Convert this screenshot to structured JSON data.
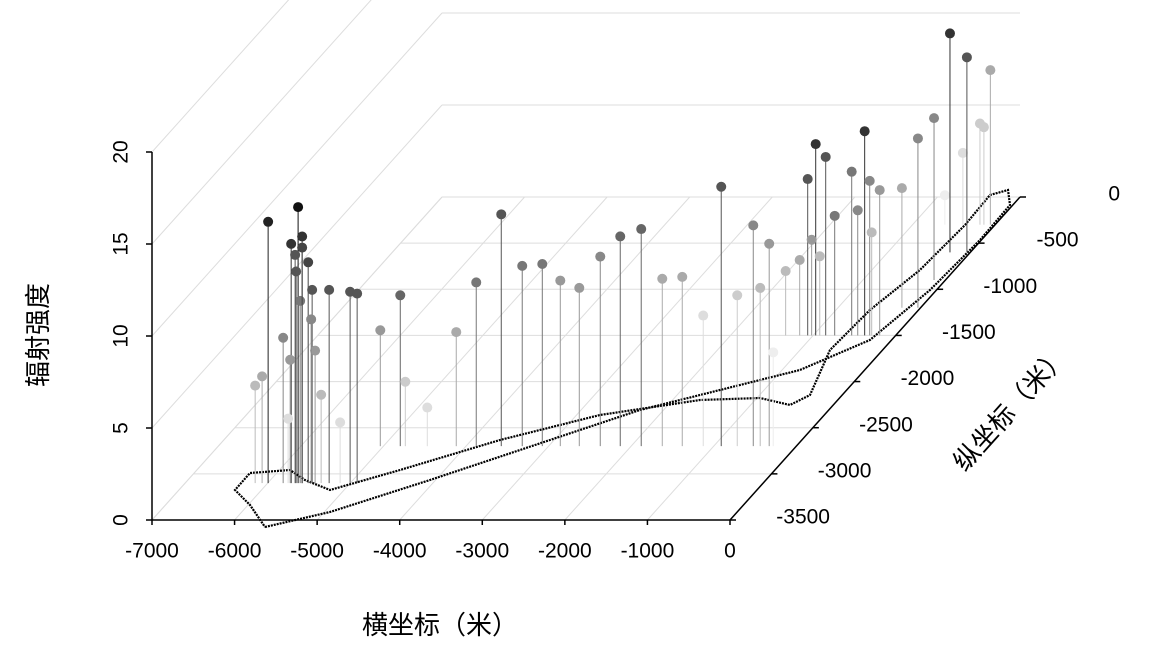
{
  "chart_data": {
    "type": "stem3d",
    "x_label": "横坐标（米）",
    "y_label": "纵坐标（米）",
    "z_label": "辐射强度",
    "xlim": [
      -7000,
      0
    ],
    "ylim": [
      -3500,
      0
    ],
    "zlim": [
      0,
      20
    ],
    "xticks": [
      -7000,
      -6000,
      -5000,
      -4000,
      -3000,
      -2000,
      -1000,
      0
    ],
    "yticks": [
      -3500,
      -3000,
      -2500,
      -2000,
      -1500,
      -1000,
      -500,
      0
    ],
    "zticks": [
      0,
      5,
      10,
      15,
      20
    ],
    "grid": true,
    "track": {
      "color": "#000000",
      "x": [
        -5555,
        -4932,
        -4068,
        -3305,
        -2287,
        -1535,
        -784,
        -262,
        -79,
        -17,
        -34,
        -222,
        -385,
        -362,
        -418,
        -589,
        -637,
        -391,
        -524,
        -963,
        -1668,
        -2717,
        -3655,
        -4540,
        -5170,
        -5582,
        -5873,
        -6324,
        -6321,
        -5977,
        -5555
      ],
      "y": [
        -3576,
        -3413,
        -3067,
        -2741,
        -2308,
        -2091,
        -1875,
        -1550,
        -1008,
        -466,
        -87,
        76,
        22,
        -303,
        -791,
        -1224,
        -1658,
        -2145,
        -2254,
        -2178,
        -2200,
        -2362,
        -2633,
        -2958,
        -3175,
        -3067,
        -2958,
        -2991,
        -3175,
        -3337,
        -3576
      ]
    },
    "points": {
      "x": [
        -5995,
        -5632,
        -5583,
        -5716,
        -5510,
        -5656,
        -5462,
        -5607,
        -5813,
        -5426,
        -6152,
        -6068,
        -5256,
        -5002,
        -4917,
        -5583,
        -5668,
        -5474,
        -5728,
        -5753,
        -5123,
        -5353,
        -4796,
        -5038,
        -4735,
        -4469,
        -4118,
        -3876,
        -3573,
        -3319,
        -3076,
        -2858,
        -2628,
        -2374,
        -2132,
        -1878,
        -1623,
        -1381,
        -1127,
        -909,
        -715,
        -521,
        -437,
        -328,
        -279,
        -1066,
        -969,
        -848,
        -739,
        -533,
        -376,
        -315,
        -194,
        -1163,
        -1018,
        -920,
        -460,
        -291,
        -1333,
        -226,
        -32,
        -138,
        -246,
        -41,
        -58,
        -184,
        -136,
        -391,
        -609
      ],
      "y": [
        -3100,
        -3100,
        -3100,
        -3100,
        -3100,
        -3100,
        -3100,
        -3100,
        -3100,
        -3100,
        -3100,
        -3100,
        -3100,
        -3100,
        -3100,
        -3100,
        -3100,
        -3100,
        -3100,
        -3100,
        -3100,
        -3100,
        -2700,
        -2700,
        -2700,
        -2700,
        -2700,
        -2700,
        -2700,
        -2700,
        -2700,
        -2700,
        -2700,
        -2700,
        -2700,
        -2700,
        -2700,
        -2700,
        -2700,
        -2700,
        -2700,
        -2700,
        -2700,
        -2700,
        -2700,
        -1500,
        -1500,
        -1500,
        -1500,
        -1500,
        -1500,
        -1500,
        -1500,
        -1500,
        -1500,
        -1500,
        -1500,
        -1500,
        -1500,
        -1200,
        -1200,
        -900,
        -600,
        -600,
        -300,
        -300,
        -300,
        -300,
        -300
      ],
      "z": [
        14.2,
        15.0,
        13.4,
        13.0,
        12.0,
        11.5,
        10.5,
        9.9,
        7.9,
        7.2,
        5.3,
        5.8,
        10.5,
        10.4,
        10.3,
        12.8,
        12.4,
        8.9,
        6.7,
        3.5,
        3.3,
        4.8,
        8.2,
        6.3,
        3.5,
        2.1,
        6.2,
        8.9,
        12.6,
        9.8,
        9.9,
        9.0,
        8.6,
        10.3,
        11.4,
        11.8,
        9.1,
        9.2,
        7.1,
        14.1,
        8.2,
        12.0,
        8.6,
        11.0,
        5.1,
        8.5,
        10.4,
        9.7,
        6.5,
        8.9,
        11.1,
        8.4,
        7.9,
        4.1,
        5.2,
        4.3,
        6.8,
        5.6,
        3.5,
        6.5,
        9.2,
        8.8,
        11.9,
        10.6,
        8.4,
        5.5,
        5.3,
        3.9,
        1.6
      ],
      "colors": [
        "#222222",
        "#111111",
        "#333333",
        "#333333",
        "#444444",
        "#555555",
        "#555555",
        "#777777",
        "#888888",
        "#999999",
        "#bbbbbb",
        "#aaaaaa",
        "#555555",
        "#555555",
        "#555555",
        "#444444",
        "#555555",
        "#888888",
        "#999999",
        "#dddddd",
        "#dddddd",
        "#bbbbbb",
        "#666666",
        "#999999",
        "#cccccc",
        "#dddddd",
        "#aaaaaa",
        "#777777",
        "#555555",
        "#777777",
        "#777777",
        "#999999",
        "#999999",
        "#888888",
        "#666666",
        "#666666",
        "#aaaaaa",
        "#aaaaaa",
        "#dddddd",
        "#555555",
        "#cccccc",
        "#888888",
        "#bbbbbb",
        "#999999",
        "#eeeeee",
        "#555555",
        "#333333",
        "#555555",
        "#777777",
        "#777777",
        "#333333",
        "#888888",
        "#999999",
        "#aaaaaa",
        "#999999",
        "#bbbbbb",
        "#888888",
        "#bbbbbb",
        "#bbbbbb",
        "#aaaaaa",
        "#888888",
        "#888888",
        "#333333",
        "#555555",
        "#aaaaaa",
        "#cccccc",
        "#cccccc",
        "#dddddd",
        "#eeeeee"
      ]
    }
  }
}
